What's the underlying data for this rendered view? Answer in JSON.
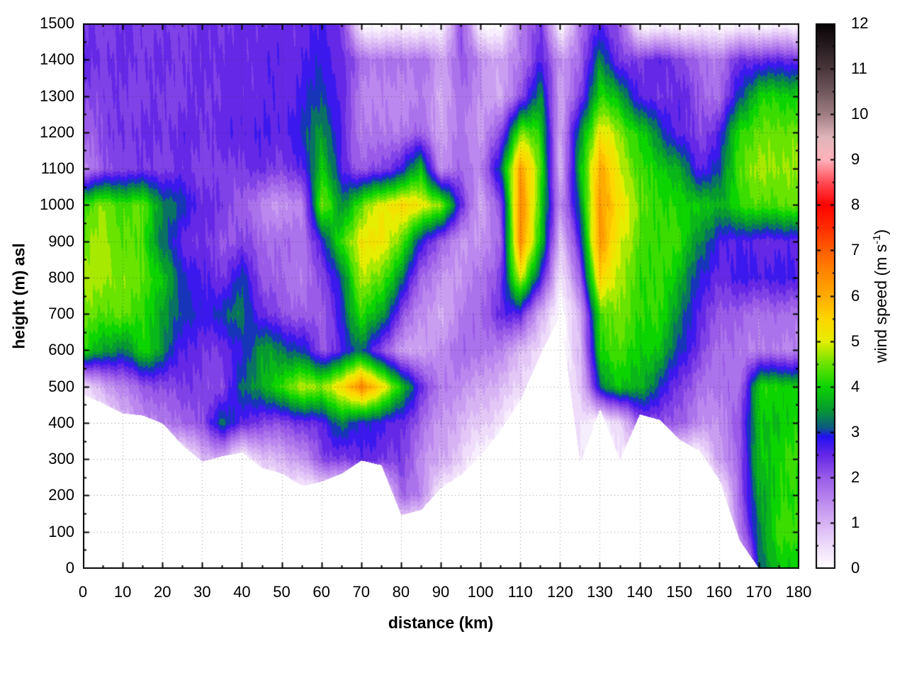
{
  "figure": {
    "x_axis_title": "distance (km)",
    "y_axis_title": "height (m) asl",
    "colorbar_title_prefix": "wind speed (m s",
    "colorbar_title_sup": "-1",
    "colorbar_title_suffix": ")"
  },
  "chart_data": {
    "type": "heatmap",
    "title": "",
    "xlabel": "distance (km)",
    "ylabel": "height (m) asl",
    "colorbar_label": "wind speed (m s^-1)",
    "x_range": [
      0,
      180
    ],
    "y_range": [
      0,
      1500
    ],
    "value_range": [
      0,
      12
    ],
    "x_major_ticks": [
      0,
      10,
      20,
      30,
      40,
      50,
      60,
      70,
      80,
      90,
      100,
      110,
      120,
      130,
      140,
      150,
      160,
      170,
      180
    ],
    "x_minor_step": 5,
    "y_major_ticks": [
      0,
      100,
      200,
      300,
      400,
      500,
      600,
      700,
      800,
      900,
      1000,
      1100,
      1200,
      1300,
      1400,
      1500
    ],
    "y_minor_step": 50,
    "colorbar_ticks": [
      0,
      1,
      2,
      3,
      4,
      5,
      6,
      7,
      8,
      9,
      10,
      11,
      12
    ],
    "colorbar_minor_step": 0.5,
    "grid_lines": "dotted",
    "band_interval": 0.25,
    "palette_stops": [
      [
        0,
        "#ffffff"
      ],
      [
        0.5,
        "#eedcfa"
      ],
      [
        1,
        "#d7b3f4"
      ],
      [
        1.5,
        "#ba88ee"
      ],
      [
        2,
        "#9a5ce8"
      ],
      [
        2.5,
        "#6428e6"
      ],
      [
        2.9,
        "#2310f2"
      ],
      [
        3.1,
        "#0b5a80"
      ],
      [
        3.5,
        "#079a30"
      ],
      [
        4,
        "#0cd400"
      ],
      [
        4.5,
        "#69e300"
      ],
      [
        5,
        "#e5ee00"
      ],
      [
        5.5,
        "#ffd600"
      ],
      [
        6,
        "#ffab00"
      ],
      [
        6.5,
        "#ff8800"
      ],
      [
        7,
        "#ff5f00"
      ],
      [
        7.5,
        "#ff2d00"
      ],
      [
        8,
        "#ff0300"
      ],
      [
        8.5,
        "#ff4a55"
      ],
      [
        9,
        "#ffb2ba"
      ],
      [
        9.5,
        "#dfb5b9"
      ],
      [
        10,
        "#a07e83"
      ],
      [
        10.5,
        "#70595e"
      ],
      [
        11,
        "#4a373c"
      ],
      [
        11.5,
        "#281c20"
      ],
      [
        12,
        "#070304"
      ]
    ],
    "x": [
      0,
      5,
      10,
      15,
      20,
      25,
      30,
      35,
      40,
      45,
      50,
      55,
      60,
      65,
      70,
      75,
      80,
      85,
      90,
      95,
      100,
      105,
      110,
      115,
      120,
      125,
      130,
      135,
      140,
      145,
      150,
      155,
      160,
      165,
      170,
      175,
      180
    ],
    "terrain_height_m": [
      480,
      455,
      428,
      422,
      400,
      340,
      295,
      310,
      320,
      278,
      262,
      228,
      240,
      262,
      298,
      285,
      148,
      162,
      222,
      258,
      312,
      382,
      465,
      590,
      700,
      290,
      440,
      300,
      425,
      410,
      355,
      325,
      245,
      80,
      0,
      0,
      0
    ],
    "row_heights_m": [
      1500,
      1400,
      1300,
      1200,
      1100,
      1000,
      900,
      800,
      700,
      600,
      500,
      400,
      300,
      200,
      100,
      0
    ],
    "wind_speed_grid": [
      [
        2.3,
        2.3,
        2.4,
        2.3,
        2.3,
        2.3,
        2.4,
        2.4,
        2.4,
        2.5,
        2.4,
        2.5,
        2.6,
        2.4,
        null,
        null,
        null,
        null,
        null,
        2.2,
        null,
        null,
        1.6,
        2.4,
        null,
        1.7,
        2.6,
        2.0,
        null,
        null,
        null,
        null,
        null,
        null,
        null,
        null,
        null
      ],
      [
        2.5,
        2.4,
        2.4,
        2.4,
        2.4,
        2.4,
        2.4,
        2.5,
        2.4,
        2.6,
        2.5,
        2.6,
        2.8,
        2.5,
        1.8,
        1.7,
        1.7,
        1.8,
        1.2,
        2.0,
        1.5,
        1.1,
        1.7,
        2.6,
        1.4,
        1.8,
        3.5,
        2.2,
        2.4,
        2.5,
        2.3,
        1.8,
        1.7,
        2.4,
        2.5,
        2.5,
        2.5
      ],
      [
        2.2,
        2.3,
        2.3,
        2.3,
        2.3,
        2.3,
        2.4,
        2.4,
        2.5,
        2.5,
        2.5,
        2.7,
        3.1,
        2.5,
        1.6,
        1.5,
        1.5,
        1.6,
        1.1,
        1.8,
        1.4,
        1.0,
        2.2,
        3.4,
        1.2,
        2.2,
        4.2,
        3.6,
        2.6,
        2.3,
        2.6,
        2.0,
        1.8,
        3.0,
        4.0,
        4.0,
        4.0
      ],
      [
        1.9,
        2.2,
        2.4,
        2.4,
        2.4,
        2.5,
        2.4,
        2.5,
        2.6,
        2.6,
        2.6,
        2.9,
        3.6,
        2.5,
        1.7,
        1.6,
        1.7,
        1.9,
        1.2,
        1.7,
        1.3,
        2.1,
        4.6,
        4.0,
        1.1,
        3.4,
        5.2,
        4.6,
        4.0,
        3.2,
        2.5,
        2.2,
        2.6,
        4.2,
        4.4,
        4.5,
        4.5
      ],
      [
        1.6,
        2.0,
        2.3,
        2.3,
        2.3,
        2.4,
        2.3,
        2.2,
        2.4,
        2.4,
        2.3,
        2.5,
        4.0,
        2.6,
        2.0,
        2.2,
        2.8,
        3.8,
        1.4,
        1.9,
        1.5,
        3.2,
        6.2,
        4.4,
        0.9,
        3.8,
        6.0,
        5.0,
        4.2,
        4.0,
        3.6,
        2.6,
        3.0,
        4.4,
        4.7,
        4.7,
        4.6
      ],
      [
        4.2,
        4.6,
        4.3,
        4.4,
        3.4,
        3.0,
        2.5,
        2.3,
        2.0,
        1.5,
        1.3,
        1.5,
        4.6,
        3.4,
        4.4,
        5.1,
        5.4,
        5.2,
        4.6,
        2.6,
        1.0,
        2.2,
        6.5,
        4.2,
        1.3,
        3.4,
        6.2,
        5.4,
        4.4,
        4.2,
        4.0,
        4.0,
        3.6,
        4.2,
        4.3,
        4.4,
        4.4
      ],
      [
        4.4,
        4.8,
        4.4,
        4.3,
        3.2,
        2.5,
        2.4,
        2.1,
        2.2,
        1.9,
        1.8,
        1.8,
        2.7,
        4.3,
        5.1,
        5.3,
        4.4,
        2.9,
        1.9,
        1.4,
        1.3,
        2.0,
        6.4,
        4.0,
        0.7,
        2.8,
        6.3,
        5.0,
        4.3,
        4.2,
        4.2,
        3.4,
        2.7,
        2.6,
        2.5,
        2.5,
        2.5
      ],
      [
        4.7,
        4.8,
        4.5,
        4.5,
        3.8,
        3.0,
        2.6,
        2.4,
        3.0,
        2.1,
        1.8,
        1.7,
        2.1,
        3.2,
        4.8,
        4.5,
        3.3,
        1.9,
        1.3,
        1.4,
        1.7,
        2.3,
        5.0,
        2.8,
        0.3,
        2.0,
        5.6,
        4.7,
        4.2,
        4.2,
        3.8,
        2.8,
        2.5,
        2.7,
        2.7,
        2.7,
        2.7
      ],
      [
        4.5,
        4.4,
        4.4,
        4.2,
        3.5,
        3.1,
        2.7,
        3.1,
        3.3,
        2.5,
        2.1,
        2.0,
        1.9,
        2.9,
        4.2,
        3.6,
        2.2,
        1.4,
        1.1,
        1.6,
        1.9,
        2.5,
        2.6,
        1.0,
        null,
        1.0,
        4.4,
        4.5,
        4.2,
        4.1,
        3.4,
        2.5,
        2.1,
        1.9,
        1.8,
        1.8,
        1.8
      ],
      [
        4.1,
        3.6,
        3.2,
        4.1,
        3.4,
        2.6,
        2.4,
        2.4,
        2.8,
        3.6,
        3.3,
        3.0,
        2.1,
        2.6,
        3.3,
        2.1,
        1.3,
        1.1,
        1.5,
        1.8,
        1.8,
        1.5,
        1.0,
        0.4,
        null,
        0.9,
        4.1,
        4.3,
        4.0,
        3.8,
        3.0,
        2.3,
        1.8,
        1.7,
        1.6,
        1.6,
        1.6
      ],
      [
        0.5,
        1.1,
        1.6,
        2.0,
        2.2,
        2.3,
        2.3,
        2.1,
        3.3,
        3.5,
        4.3,
        4.8,
        4.7,
        5.3,
        6.6,
        5.3,
        4.0,
        2.4,
        1.7,
        1.4,
        1.2,
        0.9,
        0.6,
        null,
        null,
        0.7,
        3.2,
        3.9,
        3.7,
        3.0,
        2.3,
        1.8,
        1.7,
        1.8,
        4.0,
        4.1,
        3.9
      ],
      [
        null,
        null,
        0.9,
        1.3,
        1.7,
        1.8,
        2.2,
        3.2,
        2.6,
        2.2,
        2.2,
        2.4,
        2.6,
        3.3,
        2.9,
        2.7,
        2.5,
        1.9,
        1.3,
        1.0,
        0.7,
        0.4,
        null,
        null,
        null,
        0.5,
        null,
        0.6,
        2.0,
        2.2,
        1.9,
        1.5,
        1.3,
        2.2,
        3.8,
        3.9,
        4.0
      ],
      [
        null,
        null,
        null,
        null,
        null,
        null,
        0.9,
        1.0,
        null,
        0.8,
        1.0,
        1.3,
        2.2,
        2.3,
        2.5,
        2.4,
        2.3,
        1.5,
        1.1,
        0.7,
        null,
        null,
        null,
        null,
        null,
        0.4,
        null,
        0.4,
        null,
        null,
        null,
        null,
        1.2,
        2.0,
        3.8,
        4.1,
        4.2
      ],
      [
        null,
        null,
        null,
        null,
        null,
        null,
        null,
        null,
        null,
        null,
        null,
        null,
        null,
        null,
        null,
        null,
        1.8,
        1.6,
        null,
        null,
        null,
        null,
        null,
        null,
        null,
        null,
        null,
        null,
        null,
        null,
        null,
        null,
        null,
        1.9,
        3.6,
        4.0,
        4.1
      ],
      [
        null,
        null,
        null,
        null,
        null,
        null,
        null,
        null,
        null,
        null,
        null,
        null,
        null,
        null,
        null,
        null,
        null,
        null,
        null,
        null,
        null,
        null,
        null,
        null,
        null,
        null,
        null,
        null,
        null,
        null,
        null,
        null,
        null,
        1.5,
        3.4,
        4.2,
        4.3
      ],
      [
        null,
        null,
        null,
        null,
        null,
        null,
        null,
        null,
        null,
        null,
        null,
        null,
        null,
        null,
        null,
        null,
        null,
        null,
        null,
        null,
        null,
        null,
        null,
        null,
        null,
        null,
        null,
        null,
        null,
        null,
        null,
        null,
        null,
        null,
        3.2,
        3.8,
        4.0
      ]
    ]
  }
}
